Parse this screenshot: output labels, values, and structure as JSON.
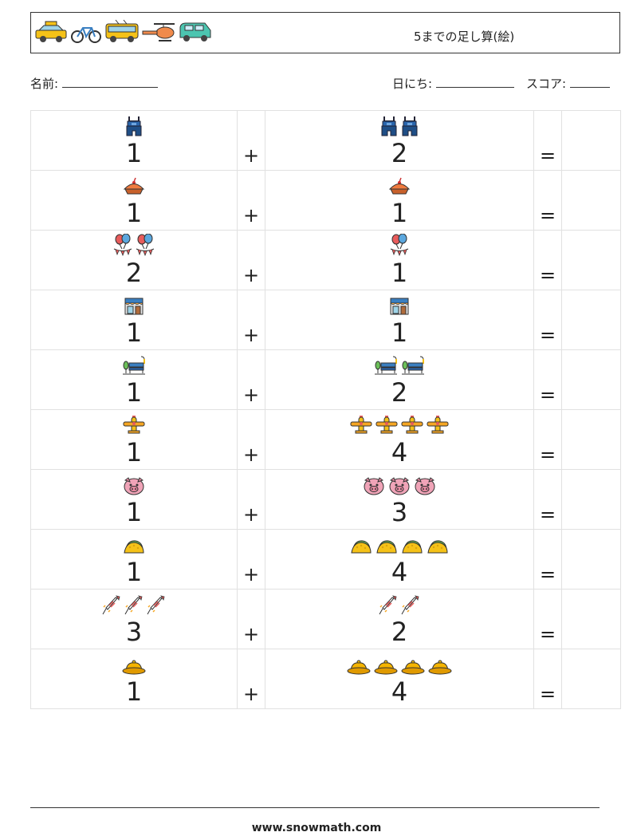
{
  "header": {
    "title": "5までの足し算(絵)",
    "vehicle_icons": [
      "taxi-icon",
      "bicycle-icon",
      "bus-icon",
      "helicopter-icon",
      "van-icon"
    ]
  },
  "meta": {
    "name_label": "名前:",
    "date_label": "日にち:",
    "score_label": "スコア:"
  },
  "operators": {
    "plus": "+",
    "equals": "="
  },
  "rows": [
    {
      "left": 1,
      "right": 2,
      "left_icon": "overalls-icon",
      "right_icon": "overalls-icon"
    },
    {
      "left": 1,
      "right": 1,
      "left_icon": "pie-icon",
      "right_icon": "pie-icon"
    },
    {
      "left": 2,
      "right": 1,
      "left_icon": "party-balloons-icon",
      "right_icon": "party-balloons-icon"
    },
    {
      "left": 1,
      "right": 1,
      "left_icon": "storefront-icon",
      "right_icon": "storefront-icon"
    },
    {
      "left": 1,
      "right": 2,
      "left_icon": "park-bench-icon",
      "right_icon": "park-bench-icon"
    },
    {
      "left": 1,
      "right": 4,
      "left_icon": "airplane-icon",
      "right_icon": "airplane-icon"
    },
    {
      "left": 1,
      "right": 3,
      "left_icon": "pig-face-icon",
      "right_icon": "pig-face-icon"
    },
    {
      "left": 1,
      "right": 4,
      "left_icon": "taco-icon",
      "right_icon": "taco-icon"
    },
    {
      "left": 3,
      "right": 2,
      "left_icon": "firework-rocket-icon",
      "right_icon": "firework-rocket-icon"
    },
    {
      "left": 1,
      "right": 4,
      "left_icon": "hat-icon",
      "right_icon": "hat-icon"
    }
  ],
  "footer": {
    "url": "www.snowmath.com"
  }
}
